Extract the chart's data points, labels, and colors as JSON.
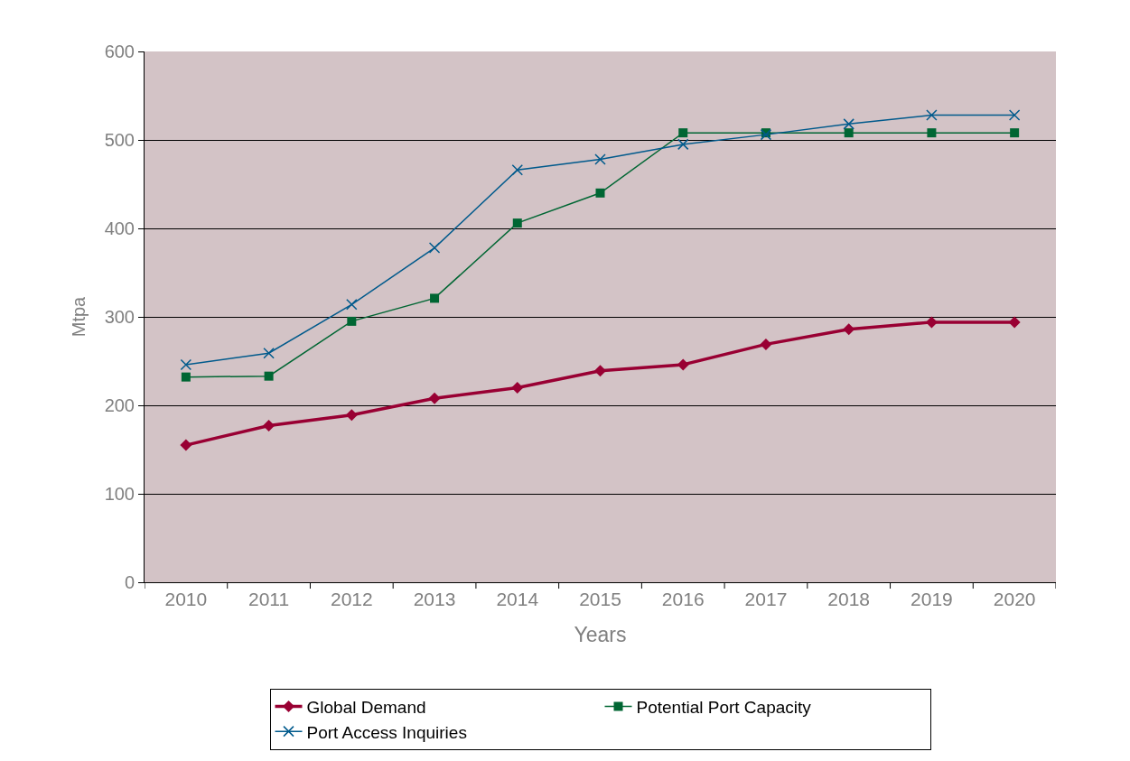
{
  "chart_data": {
    "type": "line",
    "xlabel": "Years",
    "ylabel": "Mtpa",
    "categories": [
      "2010",
      "2011",
      "2012",
      "2013",
      "2014",
      "2015",
      "2016",
      "2017",
      "2018",
      "2019",
      "2020"
    ],
    "series": [
      {
        "name": "Global Demand",
        "color": "#990033",
        "marker": "diamond",
        "values": [
          155,
          177,
          189,
          208,
          220,
          239,
          246,
          269,
          286,
          294,
          294
        ]
      },
      {
        "name": "Potential Port Capacity",
        "color": "#006633",
        "marker": "square",
        "values": [
          232,
          233,
          295,
          321,
          406,
          440,
          508,
          508,
          508,
          508,
          508
        ]
      },
      {
        "name": "Port Access Inquiries",
        "color": "#005a8c",
        "marker": "cross",
        "values": [
          246,
          259,
          314,
          378,
          466,
          478,
          495,
          506,
          518,
          528,
          528
        ]
      }
    ],
    "ylim": [
      0,
      600
    ],
    "yticks": [
      0,
      100,
      200,
      300,
      400,
      500,
      600
    ],
    "grid": "y",
    "legend": "bottom"
  }
}
